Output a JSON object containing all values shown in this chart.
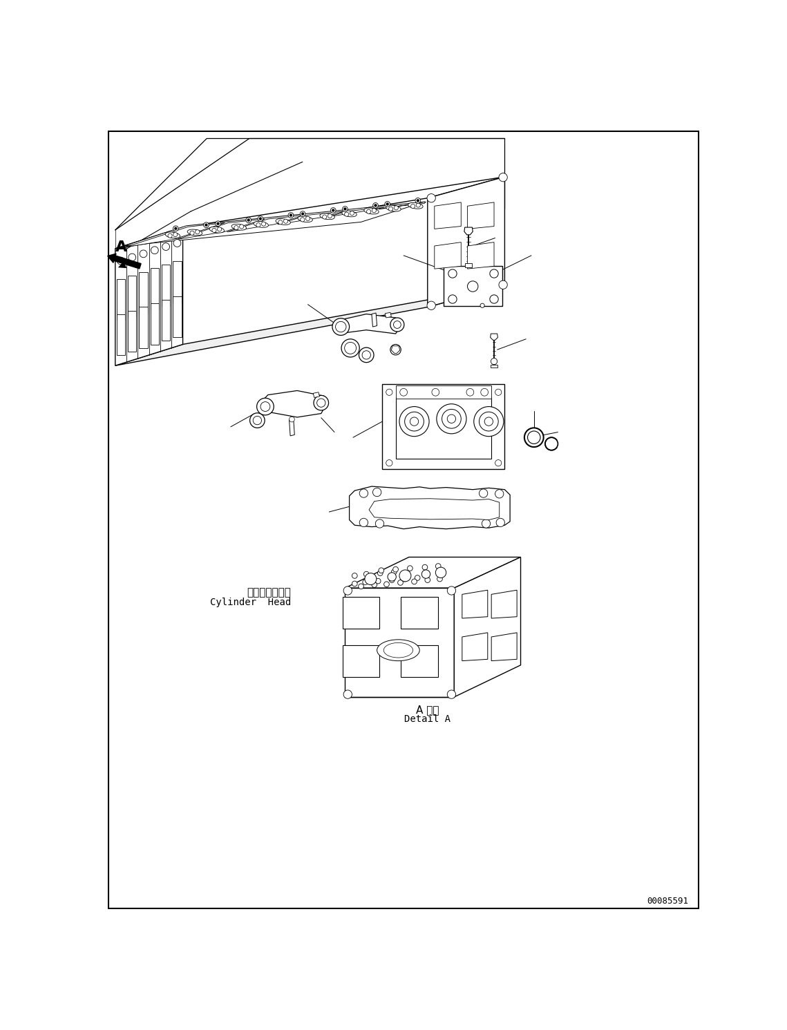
{
  "figure_width": 11.39,
  "figure_height": 14.91,
  "dpi": 100,
  "bg": "#ffffff",
  "lc": "#000000",
  "label_jp_cyl": "シリンダヘッド",
  "label_en_cyl": "Cylinder  Head",
  "label_jp_det": "A 詳細",
  "label_en_det": "Detail A",
  "doc_num": "00085591"
}
